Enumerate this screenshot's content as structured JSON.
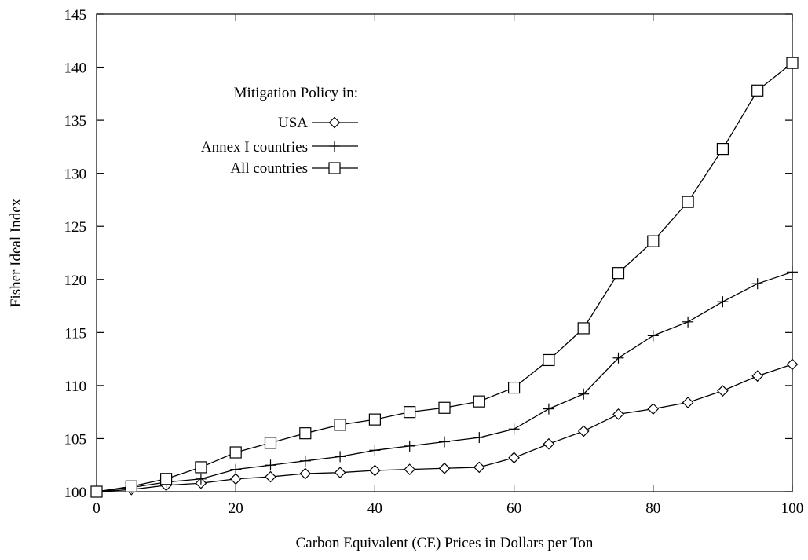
{
  "chart_data": {
    "type": "line",
    "title": "",
    "xlabel": "Carbon Equivalent (CE) Prices in Dollars per Ton",
    "ylabel": "Fisher Ideal Index",
    "xlim": [
      0,
      100
    ],
    "ylim": [
      100,
      145
    ],
    "xticks": [
      0,
      20,
      40,
      60,
      80,
      100
    ],
    "yticks": [
      100,
      105,
      110,
      115,
      120,
      125,
      130,
      135,
      140,
      145
    ],
    "grid": false,
    "legend_title": "Mitigation Policy in:",
    "legend_position": "top-left",
    "x": [
      0,
      5,
      10,
      15,
      20,
      25,
      30,
      35,
      40,
      45,
      50,
      55,
      60,
      65,
      70,
      75,
      80,
      85,
      90,
      95,
      100
    ],
    "series": [
      {
        "name": "USA",
        "marker": "diamond",
        "values": [
          100,
          100.2,
          100.6,
          100.8,
          101.2,
          101.4,
          101.7,
          101.8,
          102.0,
          102.1,
          102.2,
          102.3,
          103.2,
          104.5,
          105.7,
          107.3,
          107.8,
          108.4,
          109.5,
          110.9,
          112.0
        ]
      },
      {
        "name": "Annex I countries",
        "marker": "plus",
        "values": [
          100,
          100.4,
          100.9,
          101.2,
          102.1,
          102.5,
          102.9,
          103.3,
          103.9,
          104.3,
          104.7,
          105.1,
          105.9,
          107.8,
          109.2,
          112.6,
          114.7,
          116.0,
          117.9,
          119.6,
          120.7
        ]
      },
      {
        "name": "All countries",
        "marker": "square",
        "values": [
          100,
          100.5,
          101.2,
          102.3,
          103.7,
          104.6,
          105.5,
          106.3,
          106.8,
          107.5,
          107.9,
          108.5,
          109.8,
          112.4,
          115.4,
          120.6,
          123.6,
          127.3,
          132.3,
          137.8,
          140.4
        ]
      }
    ]
  }
}
